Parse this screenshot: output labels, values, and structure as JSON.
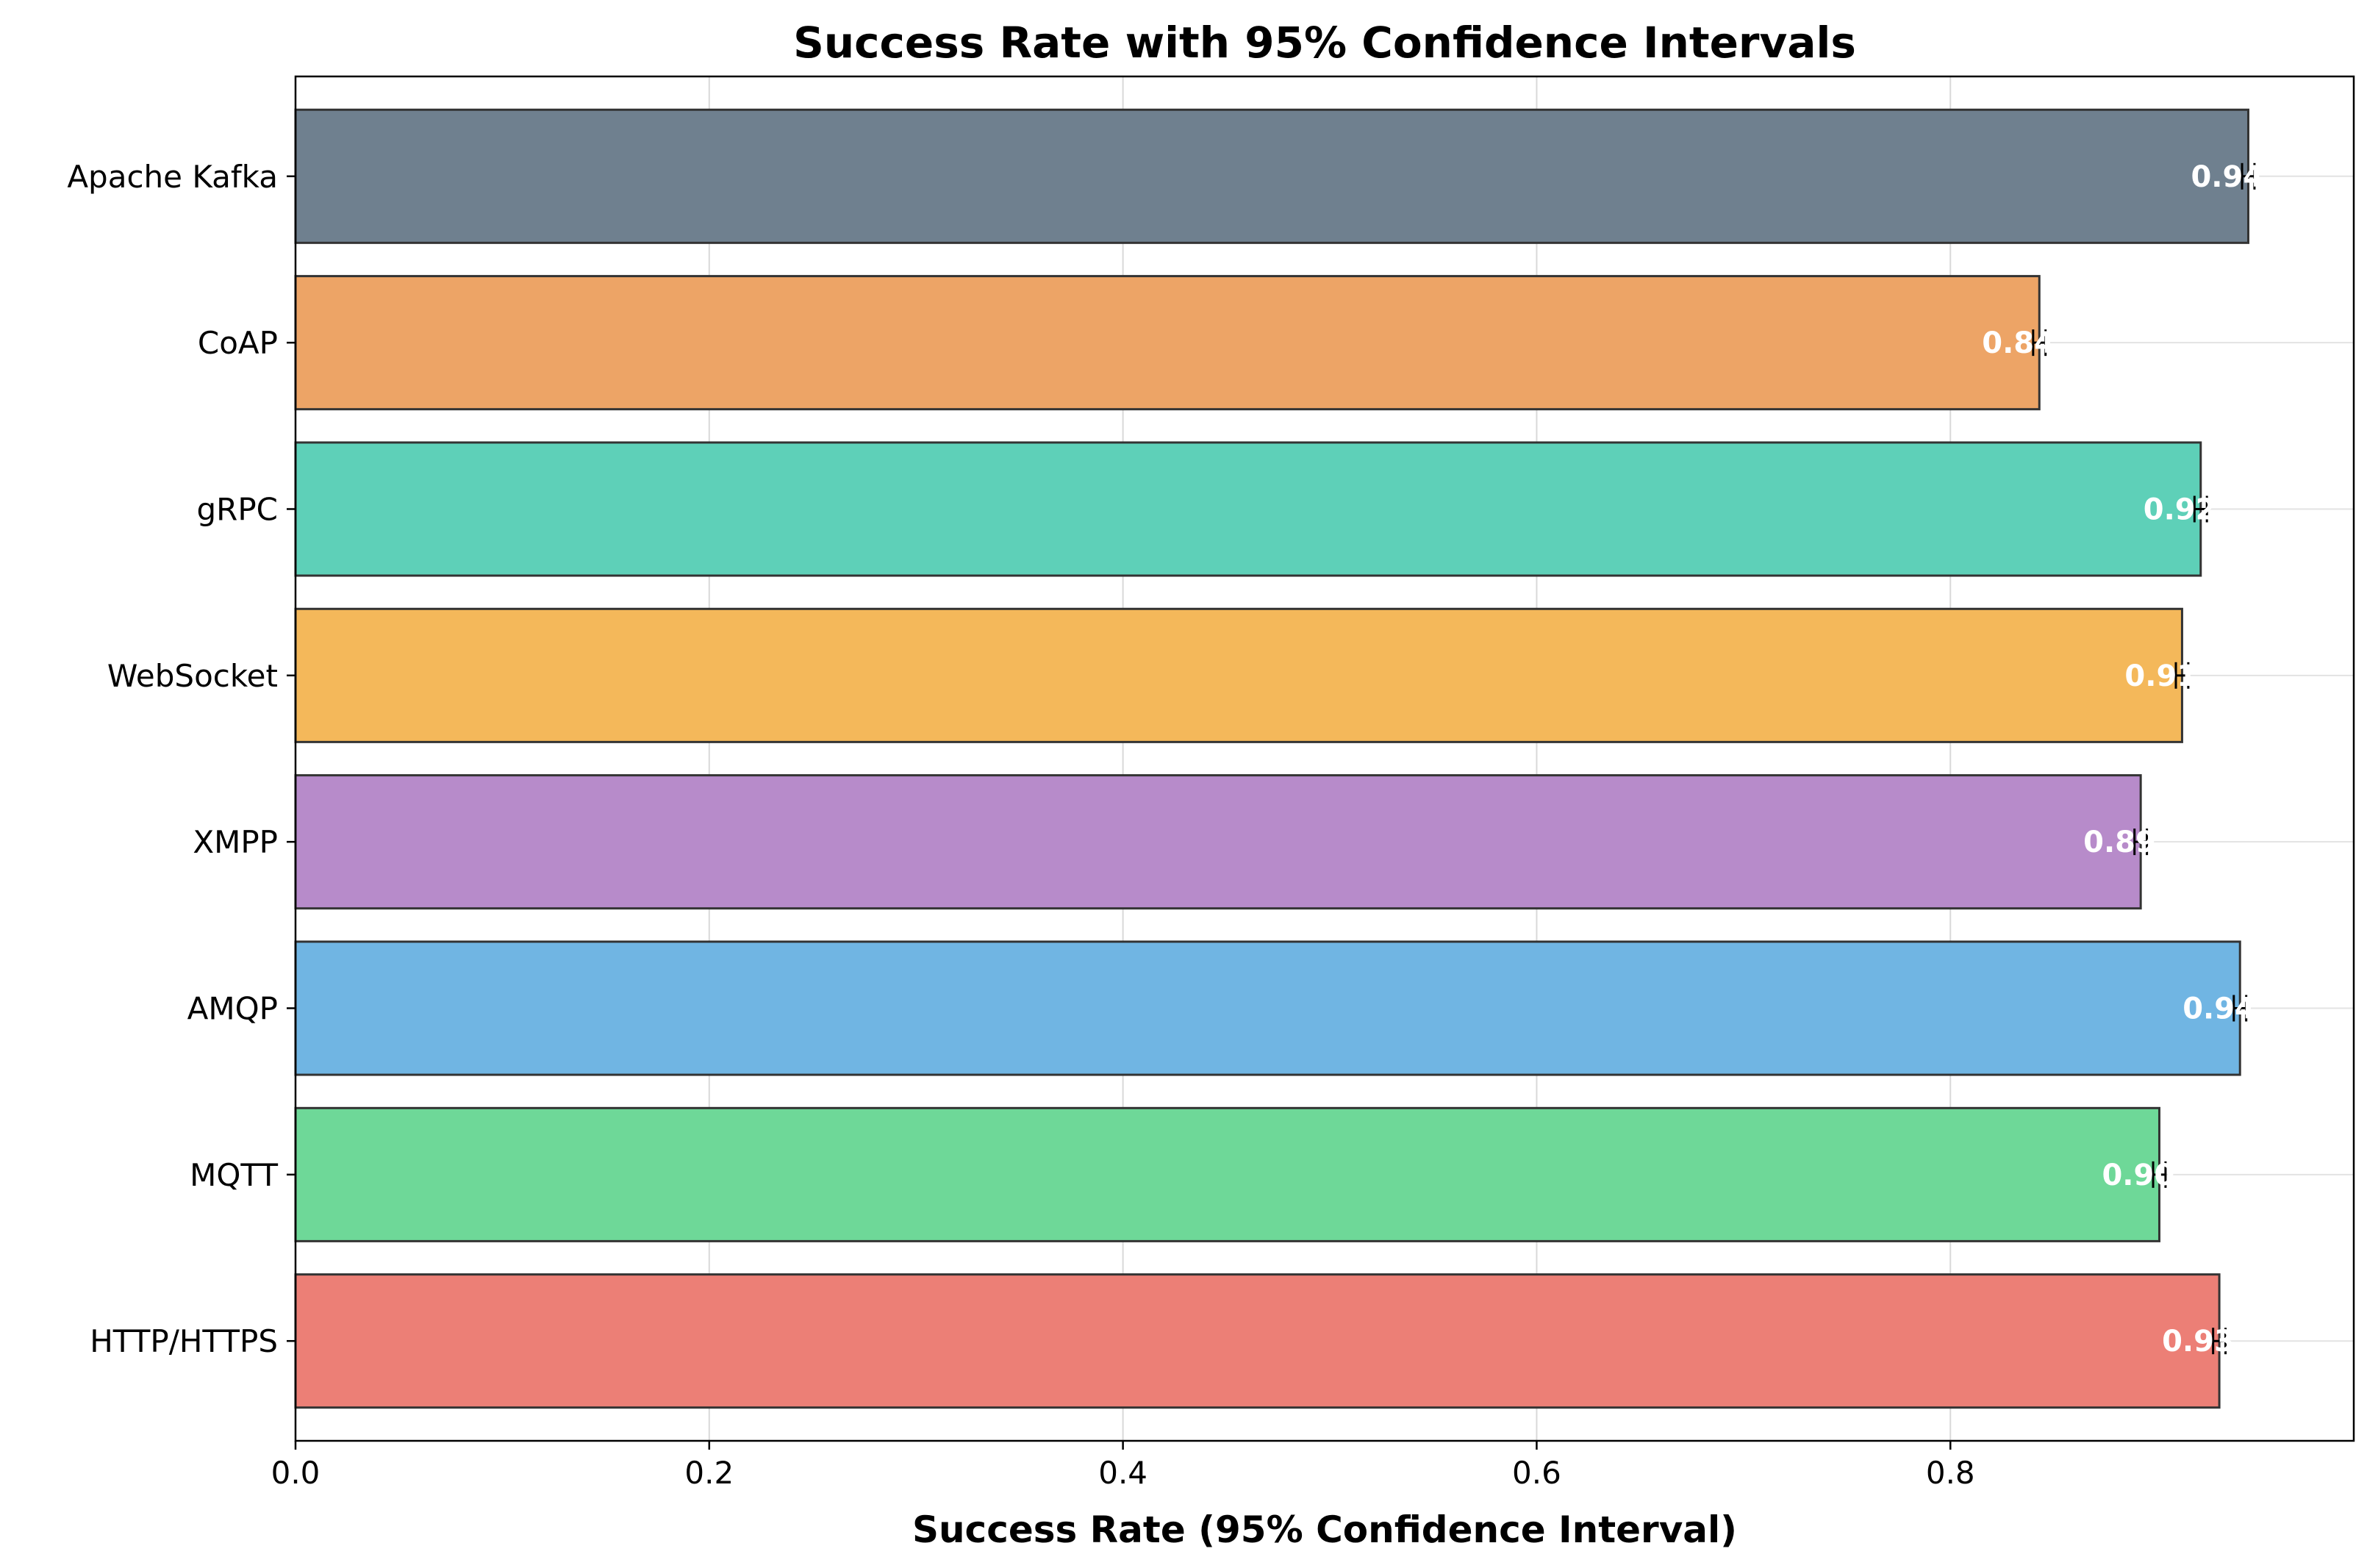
{
  "chart_data": {
    "type": "bar",
    "orientation": "horizontal",
    "title": "Success Rate with 95% Confidence Intervals",
    "xlabel": "Success Rate (95% Confidence Interval)",
    "ylabel": "",
    "xlim": [
      0,
      0.995
    ],
    "x_ticks": [
      "0.0",
      "0.2",
      "0.4",
      "0.6",
      "0.8"
    ],
    "x_tick_values": [
      0,
      0.2,
      0.4,
      0.6,
      0.8
    ],
    "grid": true,
    "categories": [
      "HTTP/HTTPS",
      "MQTT",
      "AMQP",
      "XMPP",
      "WebSocket",
      "gRPC",
      "CoAP",
      "Apache Kafka"
    ],
    "values": [
      0.93,
      0.901,
      0.94,
      0.892,
      0.912,
      0.921,
      0.843,
      0.944
    ],
    "ci_low": [
      0.927,
      0.898,
      0.937,
      0.889,
      0.909,
      0.918,
      0.84,
      0.941
    ],
    "ci_high": [
      0.933,
      0.904,
      0.943,
      0.895,
      0.915,
      0.924,
      0.846,
      0.947
    ],
    "value_labels": [
      "0.93",
      "0.90",
      "0.94",
      "0.89",
      "0.91",
      "0.92",
      "0.84",
      "0.94"
    ],
    "colors": [
      "#ec7f76",
      "#6ed898",
      "#70b5e3",
      "#b78bca",
      "#f4b85a",
      "#5ed0b8",
      "#eda466",
      "#6f808f"
    ],
    "edge_color": "#333333"
  }
}
